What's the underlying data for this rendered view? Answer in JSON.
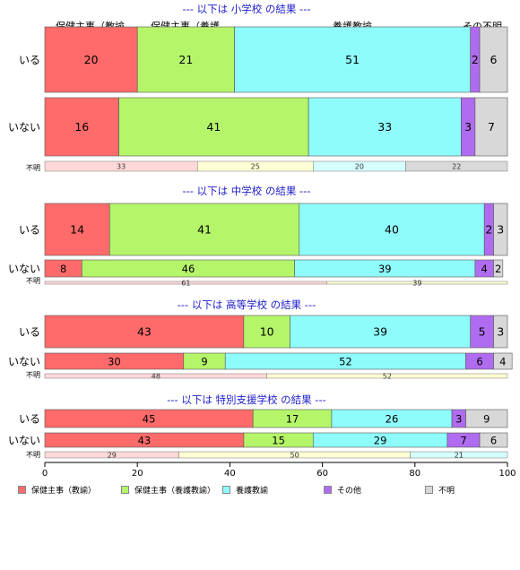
{
  "chart_data": {
    "type": "bar",
    "orientation": "horizontal-stacked-percent",
    "top_labels": [
      "保健主事（教諭..",
      "保健主事（養護..",
      "養護教諭",
      "その不明"
    ],
    "series_names": [
      "保健主事（教諭）",
      "保健主事（養護教諭）",
      "養護教諭",
      "その他",
      "不明"
    ],
    "colors": [
      "#ff6b6b",
      "#b5f56a",
      "#8ffcfc",
      "#b06cf0",
      "#d8d8d8"
    ],
    "unknown_colors": [
      "#ffd9d9",
      "#ffffd6",
      "#d6ffff",
      "#d9d9d9"
    ],
    "xlim": [
      0,
      100
    ],
    "x_ticks": [
      0,
      20,
      40,
      60,
      80,
      100
    ],
    "groups": [
      {
        "title": "--- 以下は 小学校 の結果 ---",
        "rows": [
          {
            "label": "いる",
            "values": [
              20,
              21,
              51,
              2,
              6
            ]
          },
          {
            "label": "いない",
            "values": [
              16,
              41,
              33,
              3,
              7
            ]
          }
        ],
        "unknown": {
          "label": "不明",
          "values": [
            33,
            25,
            20,
            22
          ]
        }
      },
      {
        "title": "--- 以下は 中学校 の結果 ---",
        "rows": [
          {
            "label": "いる",
            "values": [
              14,
              41,
              40,
              2,
              3
            ]
          },
          {
            "label": "いない",
            "values": [
              8,
              46,
              39,
              4,
              2
            ]
          }
        ],
        "unknown": {
          "label": "不明",
          "values": [
            61,
            39
          ]
        }
      },
      {
        "title": "--- 以下は 高等学校 の結果 ---",
        "rows": [
          {
            "label": "いる",
            "values": [
              43,
              10,
              39,
              5,
              3
            ]
          },
          {
            "label": "いない",
            "values": [
              30,
              9,
              52,
              6,
              4
            ]
          }
        ],
        "unknown": {
          "label": "不明",
          "values": [
            48,
            52
          ]
        }
      },
      {
        "title": "--- 以下は 特別支援学校 の結果 ---",
        "rows": [
          {
            "label": "いる",
            "values": [
              45,
              17,
              26,
              3,
              9
            ]
          },
          {
            "label": "いない",
            "values": [
              43,
              15,
              29,
              7,
              6
            ]
          }
        ],
        "unknown": {
          "label": "不明",
          "values": [
            29,
            50,
            21
          ]
        }
      }
    ]
  }
}
